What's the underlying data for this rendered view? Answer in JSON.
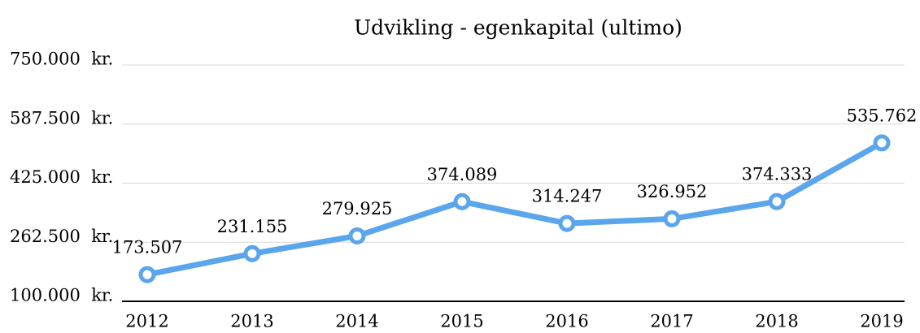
{
  "chart_data": {
    "type": "line",
    "title": "Udvikling - egenkapital (ultimo)",
    "categories": [
      "2012",
      "2013",
      "2014",
      "2015",
      "2016",
      "2017",
      "2018",
      "2019"
    ],
    "series": [
      {
        "name": "Egenkapital",
        "color": "#5aa5ec",
        "values": [
          173507,
          231155,
          279925,
          374089,
          314247,
          326952,
          374333,
          535762
        ],
        "value_labels": [
          "173.507",
          "231.155",
          "279.925",
          "374.089",
          "314.247",
          "326.952",
          "374.333",
          "535.762"
        ]
      }
    ],
    "ylim": [
      100000,
      750000
    ],
    "yticks": [
      {
        "value": 100000,
        "label": "100.000  kr."
      },
      {
        "value": 262500,
        "label": "262.500  kr."
      },
      {
        "value": 425000,
        "label": "425.000  kr."
      },
      {
        "value": 587500,
        "label": "587.500  kr."
      },
      {
        "value": 750000,
        "label": "750.000  kr."
      }
    ],
    "grid": true
  }
}
